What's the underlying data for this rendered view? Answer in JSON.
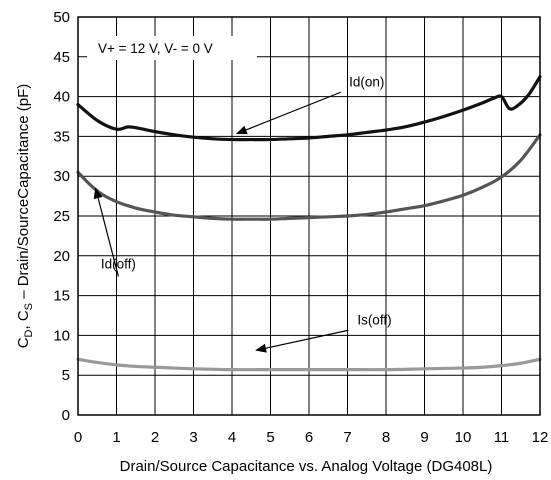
{
  "chart_data": {
    "type": "line",
    "title": "",
    "xlabel": "Drain/Source Capacitance vs. Analog Voltage  (DG408L)",
    "ylabel": {
      "prefix": "C",
      "sub1": "D",
      "mid": ",   C",
      "sub2": "S",
      "suffix": " – Drain/SourceCapacitance  (pF)"
    },
    "xlim": [
      0,
      12
    ],
    "ylim": [
      0,
      50
    ],
    "xticks": [
      "0",
      "1",
      "2",
      "3",
      "4",
      "5",
      "6",
      "7",
      "8",
      "9",
      "10",
      "11",
      "12"
    ],
    "yticks": [
      "0",
      "5",
      "10",
      "15",
      "20",
      "25",
      "30",
      "35",
      "40",
      "45",
      "50"
    ],
    "grid": true,
    "condition_label": "V+ = 12 V, V- = 0 V",
    "series": [
      {
        "name": "Id(on)",
        "color": "#111111",
        "x": [
          0,
          0.5,
          1,
          1.3,
          1.6,
          2,
          2.5,
          3,
          3.5,
          4,
          4.5,
          5,
          5.5,
          6,
          6.5,
          7,
          7.5,
          8,
          8.5,
          9,
          9.5,
          10,
          10.5,
          10.8,
          11,
          11.2,
          11.4,
          11.7,
          12
        ],
        "y": [
          39,
          37,
          35.9,
          36.2,
          36,
          35.6,
          35.2,
          34.9,
          34.7,
          34.6,
          34.6,
          34.6,
          34.7,
          34.8,
          35,
          35.2,
          35.5,
          35.8,
          36.2,
          36.8,
          37.5,
          38.3,
          39.2,
          39.8,
          40,
          38.5,
          38.8,
          40.2,
          42.5
        ]
      },
      {
        "name": "Id(off)",
        "color": "#555555",
        "x": [
          0,
          0.3,
          0.6,
          1,
          1.5,
          2,
          2.5,
          3,
          3.5,
          4,
          4.5,
          5,
          5.5,
          6,
          6.5,
          7,
          7.5,
          8,
          8.5,
          9,
          9.5,
          10,
          10.5,
          11,
          11.5,
          12
        ],
        "y": [
          30.5,
          29,
          27.8,
          26.8,
          26,
          25.5,
          25.1,
          24.9,
          24.7,
          24.6,
          24.6,
          24.6,
          24.7,
          24.8,
          24.9,
          25,
          25.2,
          25.5,
          25.9,
          26.3,
          26.9,
          27.6,
          28.6,
          29.9,
          32,
          35.2
        ]
      },
      {
        "name": "Is(off)",
        "color": "#999999",
        "x": [
          0,
          0.5,
          1,
          1.5,
          2,
          2.5,
          3,
          4,
          5,
          6,
          7,
          8,
          9,
          10,
          10.5,
          11,
          11.5,
          12
        ],
        "y": [
          7,
          6.6,
          6.3,
          6.1,
          6,
          5.9,
          5.8,
          5.7,
          5.7,
          5.7,
          5.7,
          5.7,
          5.8,
          5.9,
          6,
          6.2,
          6.5,
          7
        ]
      }
    ],
    "annotations": [
      {
        "text": "Id(on)",
        "x": 7.5,
        "y": 41.3,
        "arrow_to": [
          4.1,
          35.3
        ]
      },
      {
        "text": "Id(off)",
        "x": 1.05,
        "y": 18.4,
        "arrow_to": [
          0.45,
          28.6
        ]
      },
      {
        "text": "Is(off)",
        "x": 7.7,
        "y": 11.4,
        "arrow_to": [
          4.6,
          8.1
        ]
      }
    ]
  }
}
